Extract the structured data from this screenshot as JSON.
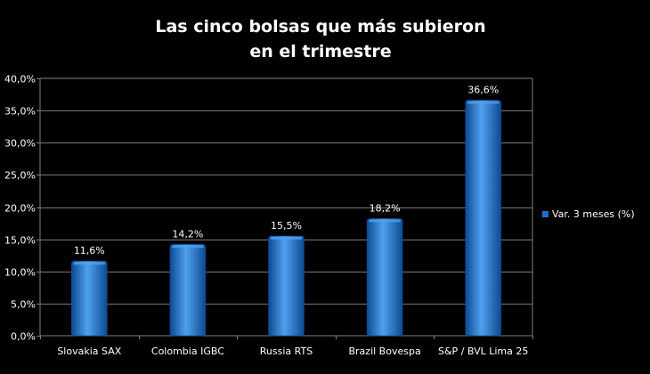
{
  "chart_data": {
    "type": "bar",
    "title_lines": [
      "Las cinco bolsas que más subieron",
      "en el trimestre"
    ],
    "categories": [
      "Slovakia SAX",
      "Colombia IGBC",
      "Russia RTS",
      "Brazil Bovespa",
      "S&P / BVL Lima 25"
    ],
    "series": [
      {
        "name": "Var. 3 meses (%)",
        "values": [
          11.6,
          14.2,
          15.5,
          18.2,
          36.6
        ],
        "data_labels": [
          "11,6%",
          "14,2%",
          "15,5%",
          "18,2%",
          "36,6%"
        ]
      }
    ],
    "y_ticks": [
      "0,0%",
      "5,0%",
      "10,0%",
      "15,0%",
      "20,0%",
      "25,0%",
      "30,0%",
      "35,0%",
      "40,0%"
    ],
    "ylim": [
      0,
      40
    ],
    "grid": true,
    "legend_position": "right",
    "colors": {
      "bar": "#1f6fc6",
      "bar_light": "#4fa0ee",
      "bar_dark": "#0d4a92",
      "background": "#000000",
      "plot_border": "#808080",
      "gridline": "#777777",
      "text": "#ffffff"
    }
  }
}
